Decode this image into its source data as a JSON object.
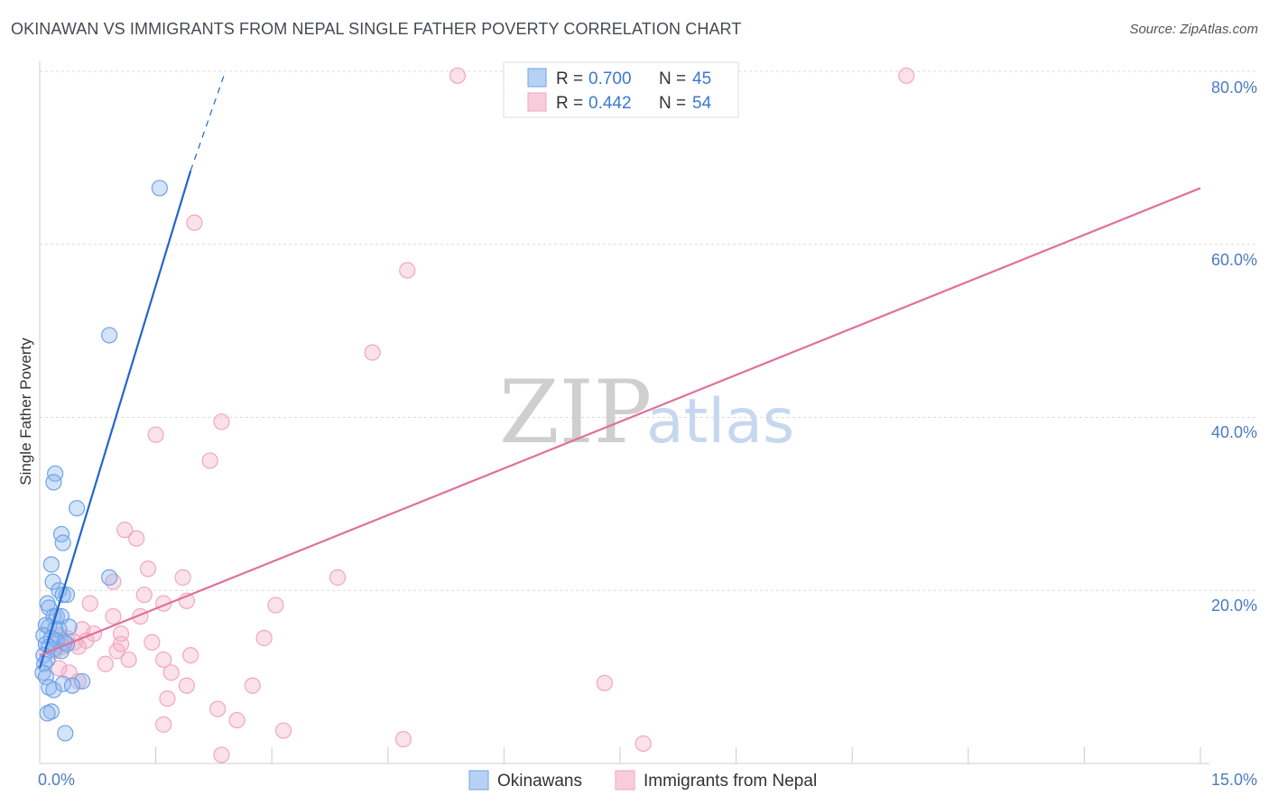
{
  "title": "OKINAWAN VS IMMIGRANTS FROM NEPAL SINGLE FATHER POVERTY CORRELATION CHART",
  "source": "Source: ZipAtlas.com",
  "watermark": {
    "part1": "ZIP",
    "part2": "atlas"
  },
  "chart_data": {
    "type": "scatter",
    "ylabel": "Single Father Poverty",
    "xlim": [
      0,
      15
    ],
    "ylim": [
      0,
      80
    ],
    "x_tick_labels": [
      "0.0%",
      "15.0%"
    ],
    "y_ticks": [
      20,
      40,
      60,
      80
    ],
    "y_tick_labels": [
      "20.0%",
      "40.0%",
      "60.0%",
      "80.0%"
    ],
    "grid": true,
    "legend_position": "top-center",
    "colors": {
      "okinawans": "#6fa3e8",
      "nepal": "#f2a6bf",
      "okinawans_line": "#2266cc",
      "nepal_line": "#e0709a",
      "axis_text": "#4a7cc4"
    },
    "stats": [
      {
        "label_r": "R = ",
        "r": "0.700",
        "label_n": "N = ",
        "n": "45"
      },
      {
        "label_r": "R = ",
        "r": "0.442",
        "label_n": "N = ",
        "n": "54"
      }
    ],
    "series": [
      {
        "name": "Okinawans",
        "color": "#6fa3e8",
        "trend": {
          "x0": 0.0,
          "y0": 11.0,
          "x1": 1.95,
          "y1": 68.5,
          "dash_x1": 2.4,
          "dash_y1": 80.0
        },
        "points": [
          [
            1.55,
            66.5
          ],
          [
            0.9,
            49.5
          ],
          [
            0.2,
            33.5
          ],
          [
            0.18,
            32.5
          ],
          [
            0.48,
            29.5
          ],
          [
            0.28,
            26.5
          ],
          [
            0.3,
            25.5
          ],
          [
            0.15,
            23.0
          ],
          [
            0.9,
            21.5
          ],
          [
            0.17,
            21.0
          ],
          [
            0.25,
            20.0
          ],
          [
            0.3,
            19.5
          ],
          [
            0.35,
            19.5
          ],
          [
            0.1,
            18.5
          ],
          [
            0.12,
            18.0
          ],
          [
            0.18,
            17.0
          ],
          [
            0.22,
            17.0
          ],
          [
            0.28,
            17.0
          ],
          [
            0.08,
            16.0
          ],
          [
            0.12,
            15.8
          ],
          [
            0.2,
            15.5
          ],
          [
            0.25,
            15.5
          ],
          [
            0.38,
            15.8
          ],
          [
            0.05,
            14.8
          ],
          [
            0.15,
            14.5
          ],
          [
            0.22,
            14.2
          ],
          [
            0.32,
            14.0
          ],
          [
            0.08,
            13.8
          ],
          [
            0.12,
            13.5
          ],
          [
            0.18,
            13.2
          ],
          [
            0.28,
            13.0
          ],
          [
            0.35,
            13.8
          ],
          [
            0.05,
            12.5
          ],
          [
            0.1,
            12.0
          ],
          [
            0.06,
            11.5
          ],
          [
            0.04,
            10.5
          ],
          [
            0.08,
            10.0
          ],
          [
            0.55,
            9.5
          ],
          [
            0.3,
            9.2
          ],
          [
            0.42,
            9.0
          ],
          [
            0.12,
            8.8
          ],
          [
            0.18,
            8.5
          ],
          [
            0.15,
            6.0
          ],
          [
            0.1,
            5.8
          ],
          [
            0.33,
            3.5
          ]
        ]
      },
      {
        "name": "Immigrants from Nepal",
        "color": "#f2a6bf",
        "trend": {
          "x0": 0.0,
          "y0": 12.5,
          "x1": 15.0,
          "y1": 66.5
        },
        "points": [
          [
            5.4,
            79.5
          ],
          [
            11.2,
            79.5
          ],
          [
            2.0,
            62.5
          ],
          [
            4.75,
            57.0
          ],
          [
            4.3,
            47.5
          ],
          [
            2.35,
            39.5
          ],
          [
            1.5,
            38.0
          ],
          [
            2.2,
            35.0
          ],
          [
            1.1,
            27.0
          ],
          [
            1.25,
            26.0
          ],
          [
            1.4,
            22.5
          ],
          [
            1.85,
            21.5
          ],
          [
            3.85,
            21.5
          ],
          [
            0.95,
            21.0
          ],
          [
            1.35,
            19.5
          ],
          [
            0.65,
            18.5
          ],
          [
            1.6,
            18.5
          ],
          [
            1.9,
            18.8
          ],
          [
            3.05,
            18.3
          ],
          [
            1.3,
            17.0
          ],
          [
            0.95,
            17.0
          ],
          [
            0.55,
            15.5
          ],
          [
            0.7,
            15.0
          ],
          [
            1.05,
            15.0
          ],
          [
            0.25,
            14.8
          ],
          [
            0.35,
            14.5
          ],
          [
            0.45,
            14.0
          ],
          [
            0.6,
            14.2
          ],
          [
            0.3,
            13.5
          ],
          [
            2.9,
            14.5
          ],
          [
            1.05,
            13.8
          ],
          [
            1.45,
            14.0
          ],
          [
            0.2,
            13.0
          ],
          [
            1.0,
            13.0
          ],
          [
            0.5,
            13.5
          ],
          [
            1.15,
            12.0
          ],
          [
            1.95,
            12.5
          ],
          [
            1.6,
            12.0
          ],
          [
            0.85,
            11.5
          ],
          [
            0.25,
            11.0
          ],
          [
            0.38,
            10.5
          ],
          [
            1.7,
            10.5
          ],
          [
            0.5,
            9.5
          ],
          [
            1.9,
            9.0
          ],
          [
            2.75,
            9.0
          ],
          [
            7.3,
            9.3
          ],
          [
            1.65,
            7.5
          ],
          [
            2.3,
            6.3
          ],
          [
            1.6,
            4.5
          ],
          [
            2.55,
            5.0
          ],
          [
            3.15,
            3.8
          ],
          [
            4.7,
            2.8
          ],
          [
            7.8,
            2.3
          ],
          [
            2.35,
            1.0
          ]
        ]
      }
    ],
    "bottom_legend": [
      "Okinawans",
      "Immigrants from Nepal"
    ]
  }
}
